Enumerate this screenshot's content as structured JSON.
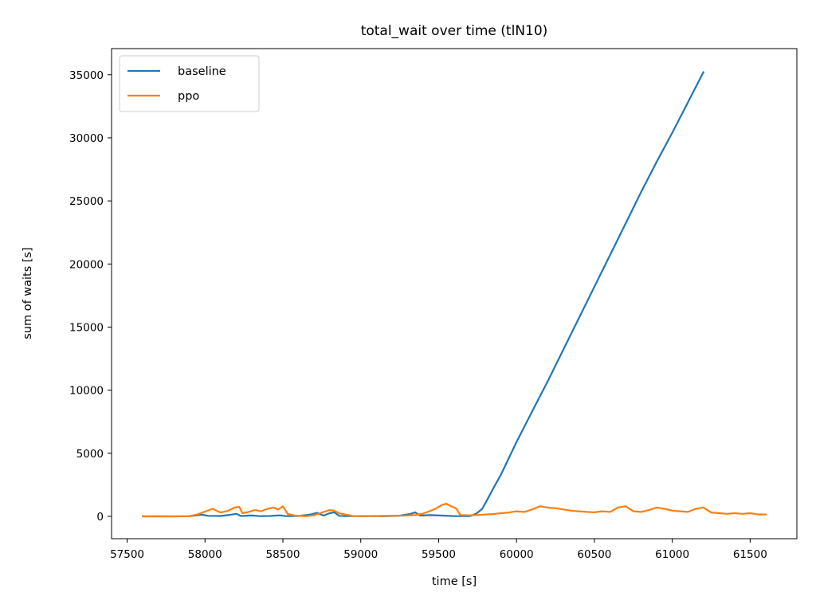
{
  "chart_data": {
    "type": "line",
    "title": "total_wait over time (tlN10)",
    "xlabel": "time [s]",
    "ylabel": "sum of waits [s]",
    "xlim": [
      57400,
      61800
    ],
    "ylim": [
      -1770,
      37070
    ],
    "xticks": [
      57500,
      58000,
      58500,
      59000,
      59500,
      60000,
      60500,
      61000,
      61500
    ],
    "yticks": [
      0,
      5000,
      10000,
      15000,
      20000,
      25000,
      30000,
      35000
    ],
    "grid": false,
    "legend_position": "top-left",
    "series": [
      {
        "name": "baseline",
        "color": "#1f77b4",
        "points": [
          [
            57600,
            0
          ],
          [
            57700,
            0
          ],
          [
            57800,
            0
          ],
          [
            57900,
            10
          ],
          [
            57980,
            130
          ],
          [
            58020,
            40
          ],
          [
            58100,
            30
          ],
          [
            58160,
            120
          ],
          [
            58200,
            200
          ],
          [
            58230,
            30
          ],
          [
            58300,
            70
          ],
          [
            58350,
            20
          ],
          [
            58420,
            30
          ],
          [
            58480,
            80
          ],
          [
            58520,
            20
          ],
          [
            58600,
            30
          ],
          [
            58680,
            150
          ],
          [
            58720,
            280
          ],
          [
            58760,
            60
          ],
          [
            58800,
            250
          ],
          [
            58830,
            320
          ],
          [
            58860,
            40
          ],
          [
            58900,
            20
          ],
          [
            59000,
            20
          ],
          [
            59080,
            30
          ],
          [
            59150,
            10
          ],
          [
            59250,
            50
          ],
          [
            59320,
            200
          ],
          [
            59350,
            320
          ],
          [
            59380,
            60
          ],
          [
            59450,
            100
          ],
          [
            59520,
            60
          ],
          [
            59600,
            20
          ],
          [
            59700,
            20
          ],
          [
            59740,
            200
          ],
          [
            59780,
            600
          ],
          [
            59820,
            1500
          ],
          [
            59850,
            2200
          ],
          [
            59900,
            3300
          ],
          [
            60000,
            5900
          ],
          [
            60100,
            8300
          ],
          [
            60200,
            10700
          ],
          [
            60300,
            13200
          ],
          [
            60400,
            15700
          ],
          [
            60500,
            18200
          ],
          [
            60600,
            20700
          ],
          [
            60700,
            23200
          ],
          [
            60800,
            25700
          ],
          [
            60900,
            28100
          ],
          [
            61000,
            30400
          ],
          [
            61100,
            32800
          ],
          [
            61200,
            35200
          ]
        ]
      },
      {
        "name": "ppo",
        "color": "#ff7f0e",
        "points": [
          [
            57600,
            0
          ],
          [
            57700,
            10
          ],
          [
            57800,
            0
          ],
          [
            57900,
            20
          ],
          [
            57950,
            150
          ],
          [
            58000,
            380
          ],
          [
            58050,
            600
          ],
          [
            58100,
            300
          ],
          [
            58150,
            450
          ],
          [
            58190,
            700
          ],
          [
            58220,
            750
          ],
          [
            58240,
            250
          ],
          [
            58280,
            350
          ],
          [
            58320,
            500
          ],
          [
            58360,
            400
          ],
          [
            58400,
            600
          ],
          [
            58440,
            700
          ],
          [
            58470,
            550
          ],
          [
            58500,
            800
          ],
          [
            58530,
            200
          ],
          [
            58580,
            50
          ],
          [
            58650,
            20
          ],
          [
            58700,
            80
          ],
          [
            58750,
            300
          ],
          [
            58800,
            500
          ],
          [
            58830,
            450
          ],
          [
            58860,
            250
          ],
          [
            58900,
            150
          ],
          [
            58950,
            30
          ],
          [
            59000,
            10
          ],
          [
            59100,
            30
          ],
          [
            59200,
            50
          ],
          [
            59280,
            60
          ],
          [
            59350,
            100
          ],
          [
            59400,
            220
          ],
          [
            59440,
            400
          ],
          [
            59480,
            600
          ],
          [
            59520,
            900
          ],
          [
            59550,
            1000
          ],
          [
            59580,
            800
          ],
          [
            59610,
            650
          ],
          [
            59640,
            100
          ],
          [
            59700,
            80
          ],
          [
            59750,
            100
          ],
          [
            59800,
            150
          ],
          [
            59850,
            180
          ],
          [
            59900,
            250
          ],
          [
            59950,
            300
          ],
          [
            60000,
            400
          ],
          [
            60050,
            350
          ],
          [
            60100,
            550
          ],
          [
            60150,
            800
          ],
          [
            60200,
            700
          ],
          [
            60250,
            650
          ],
          [
            60300,
            550
          ],
          [
            60350,
            450
          ],
          [
            60400,
            400
          ],
          [
            60450,
            350
          ],
          [
            60500,
            320
          ],
          [
            60550,
            400
          ],
          [
            60600,
            350
          ],
          [
            60650,
            700
          ],
          [
            60700,
            800
          ],
          [
            60750,
            400
          ],
          [
            60800,
            350
          ],
          [
            60850,
            500
          ],
          [
            60900,
            700
          ],
          [
            60950,
            600
          ],
          [
            61000,
            450
          ],
          [
            61050,
            400
          ],
          [
            61100,
            350
          ],
          [
            61150,
            600
          ],
          [
            61200,
            700
          ],
          [
            61250,
            300
          ],
          [
            61300,
            250
          ],
          [
            61350,
            200
          ],
          [
            61400,
            250
          ],
          [
            61450,
            200
          ],
          [
            61500,
            250
          ],
          [
            61550,
            150
          ],
          [
            61600,
            150
          ]
        ]
      }
    ]
  }
}
